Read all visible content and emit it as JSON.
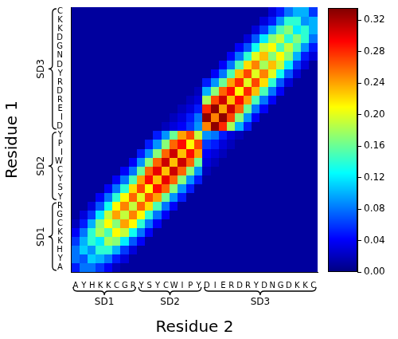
{
  "chart_data": {
    "type": "heatmap",
    "x_label": "Residue 2",
    "y_label": "Residue 1",
    "x_categories": [
      "A",
      "Y",
      "H",
      "K",
      "K",
      "C",
      "G",
      "R",
      "Y",
      "S",
      "Y",
      "C",
      "W",
      "I",
      "P",
      "Y",
      "D",
      "I",
      "E",
      "R",
      "D",
      "R",
      "Y",
      "D",
      "N",
      "G",
      "D",
      "K",
      "K",
      "C"
    ],
    "y_categories": [
      "A",
      "Y",
      "H",
      "K",
      "K",
      "C",
      "G",
      "R",
      "Y",
      "S",
      "Y",
      "C",
      "W",
      "I",
      "P",
      "Y",
      "D",
      "I",
      "E",
      "R",
      "D",
      "R",
      "Y",
      "D",
      "N",
      "G",
      "D",
      "K",
      "K",
      "C"
    ],
    "annotations": [
      {
        "text": "SD1",
        "start": 1,
        "end": 8
      },
      {
        "text": "SD2",
        "start": 9,
        "end": 16
      },
      {
        "text": "SD3",
        "start": 17,
        "end": 30
      }
    ],
    "colorbar": {
      "range": [
        0,
        0.335
      ],
      "ticks": [
        {
          "value": 0,
          "label": "0.00"
        },
        {
          "value": 0.04,
          "label": "0.04"
        },
        {
          "value": 0.08,
          "label": "0.08"
        },
        {
          "value": 0.12,
          "label": "0.12"
        },
        {
          "value": 0.16,
          "label": "0.16"
        },
        {
          "value": 0.2,
          "label": "0.20"
        },
        {
          "value": 0.24,
          "label": "0.24"
        },
        {
          "value": 0.28,
          "label": "0.28"
        },
        {
          "value": 0.32,
          "label": "0.32"
        }
      ]
    },
    "cells": [
      [
        0.05,
        0.08,
        0.08,
        0.06,
        0.04,
        0.02,
        0.01,
        0.01,
        0.01,
        0.01,
        0.01,
        0.01,
        0.01,
        0.01,
        0.01,
        0.01,
        0.01,
        0.01,
        0.01,
        0.01,
        0.01,
        0.01,
        0.01,
        0.01,
        0.01,
        0.01,
        0.01,
        0.01,
        0.01,
        0.01
      ],
      [
        0.08,
        0.07,
        0.11,
        0.1,
        0.08,
        0.05,
        0.03,
        0.01,
        0.01,
        0.01,
        0.01,
        0.01,
        0.01,
        0.01,
        0.01,
        0.01,
        0.01,
        0.01,
        0.01,
        0.01,
        0.01,
        0.01,
        0.01,
        0.01,
        0.01,
        0.01,
        0.01,
        0.01,
        0.01,
        0.01
      ],
      [
        0.08,
        0.11,
        0.09,
        0.14,
        0.14,
        0.1,
        0.06,
        0.03,
        0.01,
        0.01,
        0.01,
        0.01,
        0.01,
        0.01,
        0.01,
        0.01,
        0.01,
        0.01,
        0.01,
        0.01,
        0.01,
        0.01,
        0.01,
        0.01,
        0.01,
        0.01,
        0.01,
        0.01,
        0.01,
        0.01
      ],
      [
        0.06,
        0.1,
        0.14,
        0.12,
        0.18,
        0.17,
        0.12,
        0.07,
        0.04,
        0.01,
        0.01,
        0.01,
        0.01,
        0.01,
        0.01,
        0.01,
        0.01,
        0.01,
        0.01,
        0.01,
        0.01,
        0.01,
        0.01,
        0.01,
        0.01,
        0.01,
        0.01,
        0.01,
        0.01,
        0.01
      ],
      [
        0.04,
        0.08,
        0.14,
        0.18,
        0.15,
        0.21,
        0.19,
        0.13,
        0.08,
        0.04,
        0.01,
        0.01,
        0.01,
        0.01,
        0.01,
        0.01,
        0.01,
        0.01,
        0.01,
        0.01,
        0.01,
        0.01,
        0.01,
        0.01,
        0.01,
        0.01,
        0.01,
        0.01,
        0.01,
        0.01
      ],
      [
        0.02,
        0.05,
        0.1,
        0.17,
        0.21,
        0.17,
        0.24,
        0.21,
        0.14,
        0.08,
        0.04,
        0.01,
        0.01,
        0.01,
        0.01,
        0.01,
        0.01,
        0.01,
        0.01,
        0.01,
        0.01,
        0.01,
        0.01,
        0.01,
        0.01,
        0.01,
        0.01,
        0.01,
        0.01,
        0.01
      ],
      [
        0.01,
        0.03,
        0.06,
        0.12,
        0.19,
        0.24,
        0.19,
        0.25,
        0.21,
        0.14,
        0.08,
        0.04,
        0.01,
        0.01,
        0.01,
        0.01,
        0.01,
        0.01,
        0.01,
        0.01,
        0.01,
        0.01,
        0.01,
        0.01,
        0.01,
        0.01,
        0.01,
        0.01,
        0.01,
        0.01
      ],
      [
        0.01,
        0.01,
        0.03,
        0.07,
        0.13,
        0.21,
        0.25,
        0.19,
        0.26,
        0.22,
        0.15,
        0.08,
        0.04,
        0.01,
        0.01,
        0.01,
        0.01,
        0.01,
        0.01,
        0.01,
        0.01,
        0.01,
        0.01,
        0.01,
        0.01,
        0.01,
        0.01,
        0.01,
        0.01,
        0.01
      ],
      [
        0.01,
        0.01,
        0.01,
        0.04,
        0.08,
        0.14,
        0.21,
        0.26,
        0.2,
        0.27,
        0.24,
        0.16,
        0.09,
        0.05,
        0.01,
        0.01,
        0.01,
        0.01,
        0.01,
        0.01,
        0.01,
        0.01,
        0.01,
        0.01,
        0.01,
        0.01,
        0.01,
        0.01,
        0.01,
        0.01
      ],
      [
        0.01,
        0.01,
        0.01,
        0.01,
        0.04,
        0.08,
        0.14,
        0.22,
        0.27,
        0.21,
        0.29,
        0.26,
        0.17,
        0.09,
        0.05,
        0.01,
        0.01,
        0.01,
        0.01,
        0.01,
        0.01,
        0.01,
        0.01,
        0.01,
        0.01,
        0.01,
        0.01,
        0.01,
        0.01,
        0.01
      ],
      [
        0.01,
        0.01,
        0.01,
        0.01,
        0.01,
        0.04,
        0.08,
        0.15,
        0.24,
        0.29,
        0.23,
        0.3,
        0.26,
        0.17,
        0.09,
        0.05,
        0.01,
        0.01,
        0.01,
        0.01,
        0.01,
        0.01,
        0.01,
        0.01,
        0.01,
        0.01,
        0.01,
        0.01,
        0.01,
        0.01
      ],
      [
        0.01,
        0.01,
        0.01,
        0.01,
        0.01,
        0.01,
        0.04,
        0.08,
        0.16,
        0.26,
        0.3,
        0.23,
        0.31,
        0.26,
        0.17,
        0.09,
        0.02,
        0.01,
        0.01,
        0.01,
        0.01,
        0.01,
        0.01,
        0.01,
        0.01,
        0.01,
        0.01,
        0.01,
        0.01,
        0.01
      ],
      [
        0.01,
        0.01,
        0.01,
        0.01,
        0.01,
        0.01,
        0.01,
        0.04,
        0.09,
        0.17,
        0.26,
        0.31,
        0.23,
        0.31,
        0.26,
        0.16,
        0.03,
        0.02,
        0.01,
        0.01,
        0.01,
        0.01,
        0.01,
        0.01,
        0.01,
        0.01,
        0.01,
        0.01,
        0.01,
        0.01
      ],
      [
        0.01,
        0.01,
        0.01,
        0.01,
        0.01,
        0.01,
        0.01,
        0.01,
        0.05,
        0.09,
        0.17,
        0.26,
        0.31,
        0.23,
        0.29,
        0.24,
        0.04,
        0.03,
        0.02,
        0.01,
        0.01,
        0.01,
        0.01,
        0.01,
        0.01,
        0.01,
        0.01,
        0.01,
        0.01,
        0.01
      ],
      [
        0.01,
        0.01,
        0.01,
        0.01,
        0.01,
        0.01,
        0.01,
        0.01,
        0.01,
        0.05,
        0.09,
        0.17,
        0.26,
        0.29,
        0.21,
        0.27,
        0.06,
        0.05,
        0.03,
        0.02,
        0.01,
        0.01,
        0.01,
        0.01,
        0.01,
        0.01,
        0.01,
        0.01,
        0.01,
        0.01
      ],
      [
        0.01,
        0.01,
        0.01,
        0.01,
        0.01,
        0.01,
        0.01,
        0.01,
        0.01,
        0.01,
        0.05,
        0.09,
        0.16,
        0.24,
        0.27,
        0.19,
        0.09,
        0.08,
        0.05,
        0.03,
        0.02,
        0.01,
        0.01,
        0.01,
        0.01,
        0.01,
        0.01,
        0.01,
        0.01,
        0.01
      ],
      [
        0.01,
        0.01,
        0.01,
        0.01,
        0.01,
        0.01,
        0.01,
        0.01,
        0.01,
        0.01,
        0.01,
        0.02,
        0.03,
        0.04,
        0.06,
        0.09,
        0.25,
        0.33,
        0.28,
        0.18,
        0.1,
        0.05,
        0.01,
        0.01,
        0.01,
        0.01,
        0.01,
        0.01,
        0.01,
        0.01
      ],
      [
        0.01,
        0.01,
        0.01,
        0.01,
        0.01,
        0.01,
        0.01,
        0.01,
        0.01,
        0.01,
        0.01,
        0.01,
        0.02,
        0.03,
        0.05,
        0.08,
        0.33,
        0.25,
        0.33,
        0.27,
        0.17,
        0.09,
        0.04,
        0.01,
        0.01,
        0.01,
        0.01,
        0.01,
        0.01,
        0.01
      ],
      [
        0.01,
        0.01,
        0.01,
        0.01,
        0.01,
        0.01,
        0.01,
        0.01,
        0.01,
        0.01,
        0.01,
        0.01,
        0.01,
        0.02,
        0.03,
        0.05,
        0.28,
        0.33,
        0.24,
        0.31,
        0.26,
        0.16,
        0.08,
        0.04,
        0.01,
        0.01,
        0.01,
        0.01,
        0.01,
        0.01
      ],
      [
        0.01,
        0.01,
        0.01,
        0.01,
        0.01,
        0.01,
        0.01,
        0.01,
        0.01,
        0.01,
        0.01,
        0.01,
        0.01,
        0.01,
        0.02,
        0.03,
        0.18,
        0.27,
        0.31,
        0.23,
        0.29,
        0.24,
        0.15,
        0.08,
        0.04,
        0.01,
        0.01,
        0.01,
        0.01,
        0.01
      ],
      [
        0.01,
        0.01,
        0.01,
        0.01,
        0.01,
        0.01,
        0.01,
        0.01,
        0.01,
        0.01,
        0.01,
        0.01,
        0.01,
        0.01,
        0.01,
        0.02,
        0.1,
        0.17,
        0.26,
        0.29,
        0.21,
        0.28,
        0.23,
        0.15,
        0.08,
        0.04,
        0.01,
        0.01,
        0.01,
        0.01
      ],
      [
        0.01,
        0.01,
        0.01,
        0.01,
        0.01,
        0.01,
        0.01,
        0.01,
        0.01,
        0.01,
        0.01,
        0.01,
        0.01,
        0.01,
        0.01,
        0.01,
        0.05,
        0.09,
        0.16,
        0.24,
        0.28,
        0.2,
        0.27,
        0.22,
        0.14,
        0.07,
        0.03,
        0.01,
        0.01,
        0.01
      ],
      [
        0.01,
        0.01,
        0.01,
        0.01,
        0.01,
        0.01,
        0.01,
        0.01,
        0.01,
        0.01,
        0.01,
        0.01,
        0.01,
        0.01,
        0.01,
        0.01,
        0.01,
        0.04,
        0.08,
        0.15,
        0.23,
        0.27,
        0.2,
        0.25,
        0.2,
        0.13,
        0.07,
        0.03,
        0.01,
        0.01
      ],
      [
        0.01,
        0.01,
        0.01,
        0.01,
        0.01,
        0.01,
        0.01,
        0.01,
        0.01,
        0.01,
        0.01,
        0.01,
        0.01,
        0.01,
        0.01,
        0.01,
        0.01,
        0.01,
        0.04,
        0.08,
        0.15,
        0.22,
        0.25,
        0.18,
        0.23,
        0.19,
        0.12,
        0.06,
        0.03,
        0.01
      ],
      [
        0.01,
        0.01,
        0.01,
        0.01,
        0.01,
        0.01,
        0.01,
        0.01,
        0.01,
        0.01,
        0.01,
        0.01,
        0.01,
        0.01,
        0.01,
        0.01,
        0.01,
        0.01,
        0.01,
        0.04,
        0.08,
        0.14,
        0.2,
        0.23,
        0.17,
        0.21,
        0.17,
        0.1,
        0.05,
        0.03
      ],
      [
        0.01,
        0.01,
        0.01,
        0.01,
        0.01,
        0.01,
        0.01,
        0.01,
        0.01,
        0.01,
        0.01,
        0.01,
        0.01,
        0.01,
        0.01,
        0.01,
        0.01,
        0.01,
        0.01,
        0.01,
        0.04,
        0.07,
        0.13,
        0.19,
        0.21,
        0.15,
        0.19,
        0.15,
        0.09,
        0.05
      ],
      [
        0.01,
        0.01,
        0.01,
        0.01,
        0.01,
        0.01,
        0.01,
        0.01,
        0.01,
        0.01,
        0.01,
        0.01,
        0.01,
        0.01,
        0.01,
        0.01,
        0.01,
        0.01,
        0.01,
        0.01,
        0.01,
        0.03,
        0.07,
        0.12,
        0.17,
        0.19,
        0.14,
        0.17,
        0.14,
        0.08
      ],
      [
        0.01,
        0.01,
        0.01,
        0.01,
        0.01,
        0.01,
        0.01,
        0.01,
        0.01,
        0.01,
        0.01,
        0.01,
        0.01,
        0.01,
        0.01,
        0.01,
        0.01,
        0.01,
        0.01,
        0.01,
        0.01,
        0.01,
        0.03,
        0.06,
        0.1,
        0.15,
        0.17,
        0.12,
        0.14,
        0.1
      ],
      [
        0.01,
        0.01,
        0.01,
        0.01,
        0.01,
        0.01,
        0.01,
        0.01,
        0.01,
        0.01,
        0.01,
        0.01,
        0.01,
        0.01,
        0.01,
        0.01,
        0.01,
        0.01,
        0.01,
        0.01,
        0.01,
        0.01,
        0.01,
        0.03,
        0.05,
        0.09,
        0.14,
        0.14,
        0.09,
        0.1
      ],
      [
        0.01,
        0.01,
        0.01,
        0.01,
        0.01,
        0.01,
        0.01,
        0.01,
        0.01,
        0.01,
        0.01,
        0.01,
        0.01,
        0.01,
        0.01,
        0.01,
        0.01,
        0.01,
        0.01,
        0.01,
        0.01,
        0.01,
        0.01,
        0.01,
        0.03,
        0.05,
        0.08,
        0.1,
        0.1,
        0.06
      ]
    ]
  }
}
